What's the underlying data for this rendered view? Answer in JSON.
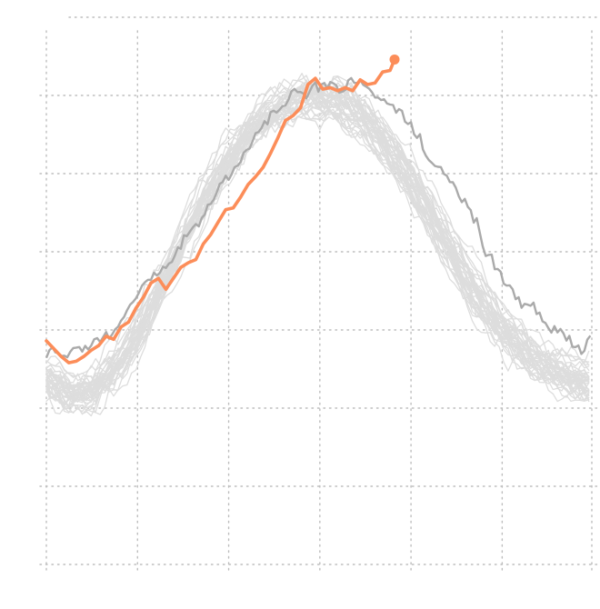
{
  "chart_data": {
    "type": "line",
    "title": "",
    "xlabel": "",
    "ylabel": "",
    "xlim": [
      0,
      365
    ],
    "ylim": [
      0,
      35
    ],
    "x_gridlines": [
      0,
      61,
      122,
      183,
      244,
      305,
      365
    ],
    "y_gridlines": [
      0,
      5,
      10,
      15,
      20,
      25,
      30,
      35
    ],
    "grid": true,
    "legend": "none",
    "colors": {
      "historical": "#dddddd",
      "previous_year": "#aaaaaa",
      "current_year": "#fc8d59"
    },
    "historical_profile": [
      [
        0,
        12.0
      ],
      [
        15,
        11.0
      ],
      [
        30,
        11.2
      ],
      [
        45,
        12.5
      ],
      [
        60,
        14.5
      ],
      [
        75,
        17.5
      ],
      [
        90,
        20.5
      ],
      [
        105,
        23.3
      ],
      [
        120,
        25.8
      ],
      [
        135,
        27.8
      ],
      [
        150,
        29.0
      ],
      [
        165,
        29.8
      ],
      [
        180,
        30.0
      ],
      [
        195,
        29.7
      ],
      [
        210,
        28.8
      ],
      [
        225,
        27.2
      ],
      [
        240,
        25.2
      ],
      [
        255,
        22.8
      ],
      [
        270,
        20.2
      ],
      [
        285,
        17.8
      ],
      [
        300,
        15.7
      ],
      [
        315,
        14.2
      ],
      [
        330,
        13.0
      ],
      [
        345,
        12.3
      ],
      [
        365,
        11.8
      ]
    ],
    "previous_year": [
      [
        0,
        13.7
      ],
      [
        10,
        13.5
      ],
      [
        20,
        13.7
      ],
      [
        30,
        13.9
      ],
      [
        40,
        14.8
      ],
      [
        50,
        15.9
      ],
      [
        60,
        17.4
      ],
      [
        70,
        18.6
      ],
      [
        80,
        19.3
      ],
      [
        90,
        20.4
      ],
      [
        100,
        21.8
      ],
      [
        110,
        23.0
      ],
      [
        120,
        24.5
      ],
      [
        130,
        26.0
      ],
      [
        140,
        27.4
      ],
      [
        150,
        28.6
      ],
      [
        160,
        29.6
      ],
      [
        170,
        30.2
      ],
      [
        180,
        30.6
      ],
      [
        190,
        30.8
      ],
      [
        200,
        30.9
      ],
      [
        210,
        30.8
      ],
      [
        220,
        30.2
      ],
      [
        230,
        29.3
      ],
      [
        240,
        28.4
      ],
      [
        250,
        27.0
      ],
      [
        260,
        25.7
      ],
      [
        270,
        24.4
      ],
      [
        280,
        23.0
      ],
      [
        290,
        21.3
      ],
      [
        300,
        19.4
      ],
      [
        310,
        17.9
      ],
      [
        320,
        16.9
      ],
      [
        330,
        15.5
      ],
      [
        340,
        15.2
      ],
      [
        350,
        14.5
      ],
      [
        358,
        13.7
      ],
      [
        365,
        14.9
      ]
    ],
    "current_year": [
      [
        0,
        14.3
      ],
      [
        5,
        13.8
      ],
      [
        10,
        13.3
      ],
      [
        15,
        12.9
      ],
      [
        20,
        13.0
      ],
      [
        25,
        13.3
      ],
      [
        30,
        13.7
      ],
      [
        35,
        14.0
      ],
      [
        40,
        14.6
      ],
      [
        45,
        14.4
      ],
      [
        50,
        15.2
      ],
      [
        55,
        15.5
      ],
      [
        60,
        16.4
      ],
      [
        65,
        17.1
      ],
      [
        70,
        18.0
      ],
      [
        75,
        18.3
      ],
      [
        80,
        17.6
      ],
      [
        85,
        18.3
      ],
      [
        90,
        19.0
      ],
      [
        95,
        19.3
      ],
      [
        100,
        19.5
      ],
      [
        105,
        20.5
      ],
      [
        110,
        21.1
      ],
      [
        115,
        21.9
      ],
      [
        120,
        22.7
      ],
      [
        125,
        22.8
      ],
      [
        130,
        23.5
      ],
      [
        135,
        24.3
      ],
      [
        140,
        24.8
      ],
      [
        145,
        25.4
      ],
      [
        150,
        26.3
      ],
      [
        155,
        27.3
      ],
      [
        160,
        28.4
      ],
      [
        165,
        28.7
      ],
      [
        170,
        29.2
      ],
      [
        175,
        30.7
      ],
      [
        180,
        31.1
      ],
      [
        185,
        30.4
      ],
      [
        190,
        30.5
      ],
      [
        195,
        30.3
      ],
      [
        200,
        30.5
      ],
      [
        205,
        30.3
      ],
      [
        210,
        31.0
      ],
      [
        215,
        30.7
      ],
      [
        220,
        30.8
      ],
      [
        225,
        31.5
      ],
      [
        230,
        31.6
      ],
      [
        233,
        32.3
      ]
    ]
  }
}
